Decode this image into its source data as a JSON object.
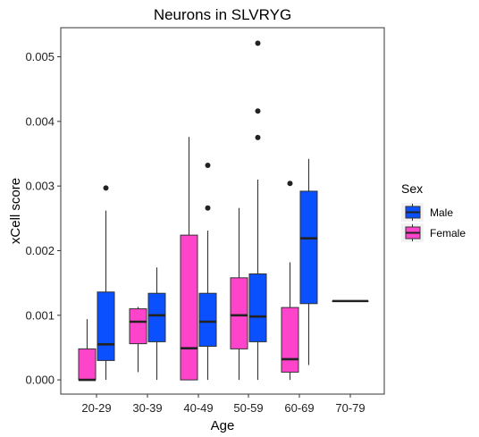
{
  "chart_data": {
    "type": "boxplot",
    "title": "Neurons in SLVRYG",
    "xlabel": "Age",
    "ylabel": "xCell score",
    "categories": [
      "20-29",
      "30-39",
      "40-49",
      "50-59",
      "60-69",
      "70-79"
    ],
    "ylim": [
      -0.00022,
      0.00545
    ],
    "yticks": [
      0.0,
      0.001,
      0.002,
      0.003,
      0.004,
      0.005
    ],
    "ytick_labels": [
      "0.000",
      "0.001",
      "0.002",
      "0.003",
      "0.004",
      "0.005"
    ],
    "grid": false,
    "legend": {
      "title": "Sex",
      "placement": "right",
      "entries": [
        "Male",
        "Female"
      ]
    },
    "series": [
      {
        "name": "Female",
        "color": "#FF44CC",
        "boxes": [
          {
            "category": "20-29",
            "min": 0.0,
            "q1": 0.0,
            "median": 0.0,
            "q3": 0.00048,
            "max": 0.00094,
            "outliers": []
          },
          {
            "category": "30-39",
            "min": 0.00012,
            "q1": 0.00056,
            "median": 0.0009,
            "q3": 0.0011,
            "max": 0.00113,
            "outliers": []
          },
          {
            "category": "40-49",
            "min": 0.0,
            "q1": 0.0,
            "median": 0.00049,
            "q3": 0.00224,
            "max": 0.00376,
            "outliers": []
          },
          {
            "category": "50-59",
            "min": 0.0,
            "q1": 0.00048,
            "median": 0.001,
            "q3": 0.00158,
            "max": 0.00266,
            "outliers": []
          },
          {
            "category": "60-69",
            "min": 0.0,
            "q1": 0.00012,
            "median": 0.00032,
            "q3": 0.00112,
            "max": 0.00182,
            "outliers": [
              0.00304
            ]
          },
          {
            "category": "70-79",
            "min": null,
            "q1": null,
            "median": null,
            "q3": null,
            "max": null,
            "outliers": []
          }
        ]
      },
      {
        "name": "Male",
        "color": "#0A50FF",
        "boxes": [
          {
            "category": "20-29",
            "min": 0.0,
            "q1": 0.0003,
            "median": 0.00055,
            "q3": 0.00136,
            "max": 0.00262,
            "outliers": [
              0.00297
            ]
          },
          {
            "category": "30-39",
            "min": 0.0,
            "q1": 0.00059,
            "median": 0.001,
            "q3": 0.00134,
            "max": 0.00174,
            "outliers": []
          },
          {
            "category": "40-49",
            "min": 0.0,
            "q1": 0.00052,
            "median": 0.0009,
            "q3": 0.00134,
            "max": 0.00231,
            "outliers": [
              0.00266,
              0.00332
            ]
          },
          {
            "category": "50-59",
            "min": 0.0,
            "q1": 0.00059,
            "median": 0.00098,
            "q3": 0.00164,
            "max": 0.0031,
            "outliers": [
              0.00375,
              0.00416,
              0.00521
            ]
          },
          {
            "category": "60-69",
            "min": 0.00023,
            "q1": 0.00118,
            "median": 0.00219,
            "q3": 0.00292,
            "max": 0.00342,
            "outliers": []
          },
          {
            "category": "70-79",
            "min": 0.00122,
            "q1": 0.00122,
            "median": 0.00122,
            "q3": 0.00122,
            "max": 0.00122,
            "outliers": []
          }
        ]
      }
    ]
  }
}
